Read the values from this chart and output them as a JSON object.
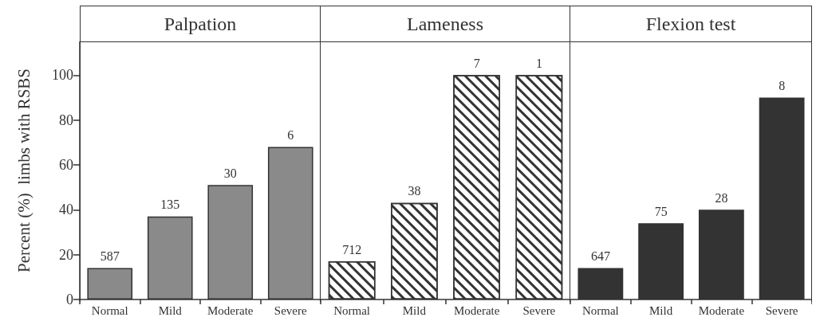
{
  "chart_data": [
    {
      "type": "bar",
      "title": "Palpation",
      "ylabel": "Percent (%)  limbs with RSBS",
      "categories": [
        "Normal",
        "Mild",
        "Moderate",
        "Severe"
      ],
      "values": [
        14,
        37,
        51,
        68
      ],
      "color": "#8a8a8a",
      "ylim": [
        0,
        115
      ],
      "yticks": [
        0,
        20,
        40,
        60,
        80,
        100
      ],
      "grid": false,
      "annotations": [
        {
          "text": "587",
          "x": "Normal",
          "y": 14
        },
        {
          "text": "135",
          "x": "Mild",
          "y": 37
        },
        {
          "text": "30",
          "x": "Moderate",
          "y": 51
        },
        {
          "text": "6",
          "x": "Severe",
          "y": 68
        }
      ]
    },
    {
      "type": "bar",
      "title": "Lameness",
      "categories": [
        "Normal",
        "Mild",
        "Moderate",
        "Severe"
      ],
      "values": [
        17,
        43,
        100,
        100
      ],
      "color": "#ffffff",
      "ylim": [
        0,
        115
      ],
      "yticks": [
        0,
        20,
        40,
        60,
        80,
        100
      ],
      "grid": false,
      "tick_labels": "x",
      "annotations": [
        {
          "text": "712",
          "x": "Normal",
          "y": 17
        },
        {
          "text": "38",
          "x": "Mild",
          "y": 43
        },
        {
          "text": "7",
          "x": "Moderate",
          "y": 100
        },
        {
          "text": "1",
          "x": "Severe",
          "y": 100
        }
      ]
    },
    {
      "type": "bar",
      "title": "Flexion test",
      "categories": [
        "Normal",
        "Mild",
        "Moderate",
        "Severe"
      ],
      "values": [
        14,
        34,
        40,
        90
      ],
      "color": "#333333",
      "ylim": [
        0,
        115
      ],
      "yticks": [
        0,
        20,
        40,
        60,
        80,
        100
      ],
      "grid": false,
      "tick_labels": "x",
      "annotations": [
        {
          "text": "647",
          "x": "Normal",
          "y": 14
        },
        {
          "text": "75",
          "x": "Mild",
          "y": 34
        },
        {
          "text": "28",
          "x": "Moderate",
          "y": 40
        },
        {
          "text": "8",
          "x": "Severe",
          "y": 90
        }
      ]
    }
  ]
}
